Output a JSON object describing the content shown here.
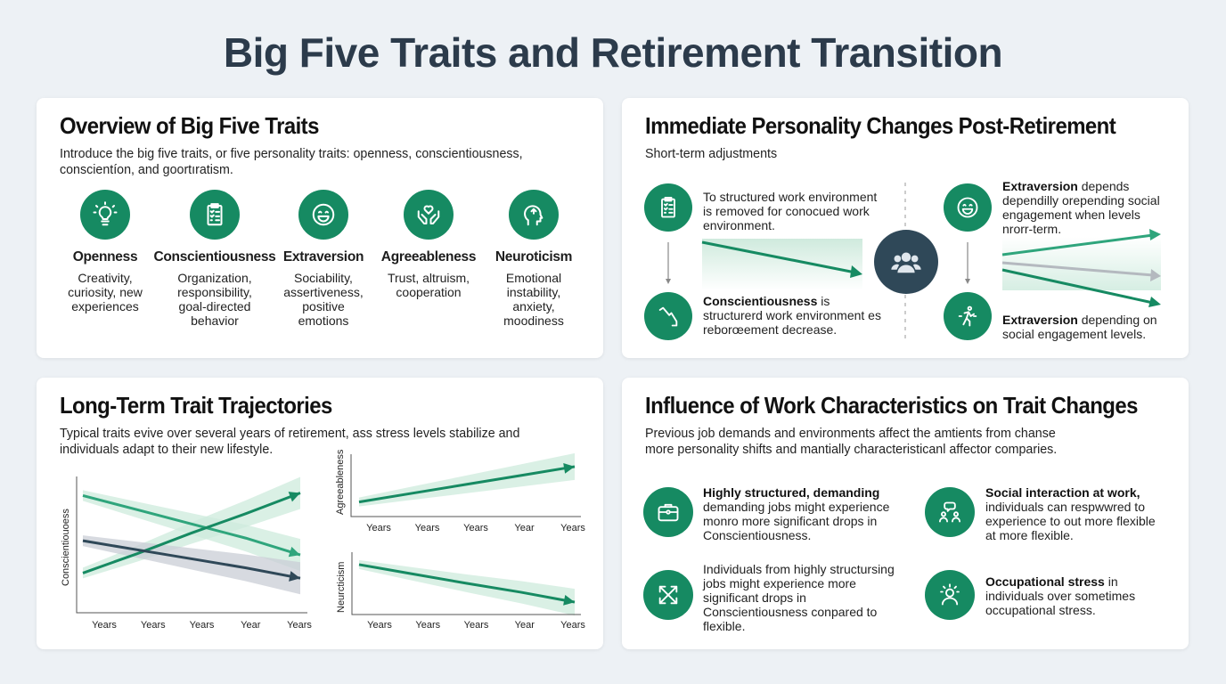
{
  "title": "Big Five Traits and Retirement Transition",
  "colors": {
    "accent": "#168a62",
    "accent_light": "#2fa57c",
    "dark": "#2f4858",
    "band": "#d6eee3",
    "gray": "#b4b9bf",
    "background": "#edf1f5"
  },
  "overview": {
    "title": "Overview of Big Five Traits",
    "intro": "Introduce the big five traits, or five personality traits: openness, conscientiousness, conscientíon, and goortıratism.",
    "traits": [
      {
        "name": "Openness",
        "desc": "Creativity, curiosity, new experiences",
        "icon": "lightbulb-icon"
      },
      {
        "name": "Conscientiousness",
        "desc": "Organization, responsibility, goal-directed behavior",
        "icon": "clipboard-checklist-icon"
      },
      {
        "name": "Extraversion",
        "desc": "Sociability, assertiveness, positive emotions",
        "icon": "smiley-icon"
      },
      {
        "name": "Agreeableness",
        "desc": "Trust, altruism, cooperation",
        "icon": "hands-heart-icon"
      },
      {
        "name": "Neuroticism",
        "desc": "Emotional instability, anxiety, moodiness",
        "icon": "head-icon"
      }
    ]
  },
  "immediate": {
    "title": "Immediate Personality Changes Post-Retirement",
    "subtitle": "Short-term adjustments",
    "top_left": "To structured work environment is removed for conocued work environment.",
    "bottom_left_bold": "Conscientiousness",
    "bottom_left": " is structurerd work environment es reborœement decrease.",
    "top_right_bold": "Extraversion",
    "top_right": " depends dependilly orepending social engagement when levels nrorr-term.",
    "bottom_right_bold": "Extraversion",
    "bottom_right": " depending on social engagement levels.",
    "center_icon": "group-icon"
  },
  "longterm": {
    "title": "Long-Term Trait Trajectories",
    "intro": "Typical traits evive over several years of retirement, ass stress levels stabilize and individuals adapt to their new lifestyle."
  },
  "chart_data": [
    {
      "type": "line",
      "ylabel": "Conscientiouoess",
      "categories": [
        "Years",
        "Years",
        "Years",
        "Year",
        "Years"
      ],
      "series": [
        {
          "color": "#2fa57c",
          "values": [
            8.8,
            7.7,
            6.6,
            5.5,
            4.2
          ]
        },
        {
          "color": "#168a62",
          "values": [
            2.8,
            4.3,
            5.9,
            7.4,
            9.0
          ]
        },
        {
          "color": "#2f4858",
          "values": [
            5.3,
            4.6,
            3.9,
            3.2,
            2.4
          ]
        }
      ]
    },
    {
      "type": "line",
      "ylabel": "Agreeableness",
      "categories": [
        "Years",
        "Years",
        "Years",
        "Year",
        "Years"
      ],
      "series": [
        {
          "color": "#168a62",
          "values": [
            2.0,
            3.6,
            5.2,
            6.8,
            8.4
          ]
        }
      ]
    },
    {
      "type": "line",
      "ylabel": "Neurcticism",
      "categories": [
        "Years",
        "Years",
        "Years",
        "Year",
        "Years"
      ],
      "series": [
        {
          "color": "#168a62",
          "values": [
            8.4,
            6.7,
            5.0,
            3.4,
            1.6
          ]
        }
      ]
    }
  ],
  "work": {
    "title": "Influence of Work Characteristics on Trait Changes",
    "intro": "Previous job demands and environments affect the amtients from chanse more personality shifts and mantially characteristicanl affector comparies.",
    "items": [
      {
        "bold": "Highly structured, demanding",
        "text": " demanding jobs might experience monro more significant drops in Conscientiousness.",
        "icon": "briefcase-icon"
      },
      {
        "bold": "Social interaction at work,",
        "text": " individuals can respwwred to experience to out more flexible at more flexible.",
        "icon": "people-chat-icon"
      },
      {
        "bold": "",
        "text": "Individuals from highly structursing jobs might experience more significant drops in Conscientiousness conpared to flexible.",
        "icon": "crossed-arrows-icon"
      },
      {
        "bold": "Occupational stress",
        "text": " in individuals over sometimes occupational stress.",
        "icon": "stressed-person-icon"
      }
    ]
  }
}
